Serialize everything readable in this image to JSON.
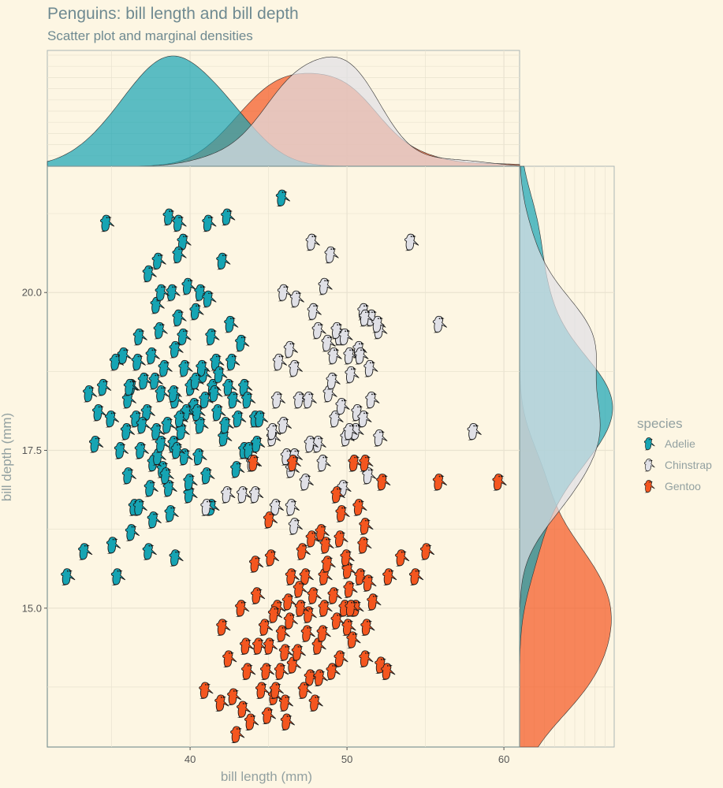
{
  "chart_data": {
    "type": "scatter",
    "title": "Penguins: bill length and bill depth",
    "subtitle": "Scatter plot and marginal densities",
    "xlabel": "bill length (mm)",
    "ylabel": "bill depth (mm)",
    "xlim": [
      30.9,
      61.0
    ],
    "ylim": [
      12.8,
      22.0
    ],
    "x_ticks": [
      40,
      50,
      60
    ],
    "y_ticks": [
      15.0,
      17.5,
      20.0
    ],
    "x_tick_labels": [
      "40",
      "50",
      "60"
    ],
    "y_tick_labels": [
      "15.0",
      "17.5",
      "20.0"
    ],
    "grid": true,
    "legend": {
      "title": "species",
      "position": "right"
    },
    "colors": {
      "Adelie": "#16a4b3",
      "Chinstrap": "#e0e0e6",
      "Gentoo": "#f4561f"
    },
    "marginal_densities": {
      "top": "bill length (mm)",
      "right": "bill depth (mm)"
    },
    "series": [
      {
        "name": "Adelie",
        "points": [
          [
            34.6,
            21.1
          ],
          [
            38.6,
            21.2
          ],
          [
            39.2,
            21.1
          ],
          [
            41.1,
            21.1
          ],
          [
            42.3,
            21.2
          ],
          [
            45.8,
            21.5
          ],
          [
            36.7,
            19.3
          ],
          [
            37.8,
            19.8
          ],
          [
            39.2,
            19.6
          ],
          [
            39.5,
            19.3
          ],
          [
            40.3,
            19.7
          ],
          [
            41.3,
            19.3
          ],
          [
            42.5,
            19.5
          ],
          [
            38.0,
            19.4
          ],
          [
            37.9,
            20.5
          ],
          [
            39.8,
            20.1
          ],
          [
            39.5,
            20.8
          ],
          [
            42.0,
            20.5
          ],
          [
            37.3,
            20.3
          ],
          [
            40.6,
            20.0
          ],
          [
            41.1,
            19.9
          ],
          [
            38.8,
            20.0
          ],
          [
            38.1,
            20.0
          ],
          [
            43.2,
            19.2
          ],
          [
            39.2,
            20.6
          ],
          [
            42.6,
            18.9
          ],
          [
            35.2,
            18.9
          ],
          [
            33.5,
            18.4
          ],
          [
            36.2,
            18.5
          ],
          [
            37.0,
            18.6
          ],
          [
            38.1,
            18.4
          ],
          [
            40.2,
            18.2
          ],
          [
            41.4,
            18.5
          ],
          [
            42.7,
            18.3
          ],
          [
            36.5,
            18.0
          ],
          [
            37.7,
            18.6
          ],
          [
            39.0,
            18.3
          ],
          [
            40.8,
            18.7
          ],
          [
            41.7,
            18.1
          ],
          [
            43.0,
            18.0
          ],
          [
            34.1,
            18.1
          ],
          [
            35.9,
            17.8
          ],
          [
            37.8,
            17.8
          ],
          [
            38.9,
            17.6
          ],
          [
            40.6,
            17.9
          ],
          [
            42.1,
            17.7
          ],
          [
            44.1,
            18.0
          ],
          [
            33.9,
            17.6
          ],
          [
            35.5,
            17.5
          ],
          [
            36.8,
            17.5
          ],
          [
            38.2,
            17.2
          ],
          [
            39.6,
            17.4
          ],
          [
            41.0,
            17.1
          ],
          [
            42.9,
            17.2
          ],
          [
            36.0,
            17.1
          ],
          [
            37.4,
            16.9
          ],
          [
            38.6,
            16.9
          ],
          [
            39.9,
            16.8
          ],
          [
            41.3,
            16.6
          ],
          [
            43.4,
            17.5
          ],
          [
            36.4,
            16.6
          ],
          [
            37.6,
            16.4
          ],
          [
            38.7,
            16.5
          ],
          [
            35.0,
            16.0
          ],
          [
            36.2,
            16.2
          ],
          [
            37.3,
            15.9
          ],
          [
            39.0,
            15.8
          ],
          [
            33.2,
            15.9
          ],
          [
            35.3,
            15.5
          ],
          [
            32.1,
            15.5
          ],
          [
            36.6,
            18.9
          ],
          [
            39.6,
            18.8
          ],
          [
            40.0,
            18.5
          ],
          [
            43.4,
            18.5
          ],
          [
            44.4,
            18.0
          ],
          [
            43.7,
            17.5
          ],
          [
            34.9,
            18.0
          ],
          [
            38.9,
            18.4
          ],
          [
            37.6,
            17.3
          ],
          [
            36.0,
            18.3
          ],
          [
            40.4,
            18.1
          ],
          [
            42.4,
            18.5
          ],
          [
            38.3,
            18.8
          ],
          [
            39.7,
            18.1
          ],
          [
            37.2,
            18.1
          ],
          [
            41.5,
            18.4
          ],
          [
            38.5,
            17.9
          ],
          [
            40.9,
            18.3
          ],
          [
            39.1,
            17.5
          ],
          [
            39.9,
            17.0
          ],
          [
            40.7,
            18.8
          ],
          [
            37.5,
            19.0
          ],
          [
            35.7,
            19.0
          ],
          [
            34.4,
            18.5
          ],
          [
            36.9,
            17.9
          ],
          [
            39.4,
            17.8
          ],
          [
            42.2,
            17.9
          ],
          [
            38.4,
            17.1
          ],
          [
            36.7,
            16.6
          ],
          [
            41.6,
            18.9
          ],
          [
            40.3,
            18.6
          ],
          [
            39.0,
            19.1
          ],
          [
            40.5,
            17.4
          ],
          [
            37.9,
            17.4
          ],
          [
            41.8,
            18.7
          ],
          [
            39.3,
            18.0
          ],
          [
            38.1,
            17.6
          ],
          [
            36.1,
            18.5
          ],
          [
            43.6,
            18.3
          ],
          [
            44.2,
            17.6
          ]
        ]
      },
      {
        "name": "Chinstrap",
        "points": [
          [
            47.7,
            20.8
          ],
          [
            48.9,
            20.6
          ],
          [
            54.0,
            20.8
          ],
          [
            48.5,
            20.1
          ],
          [
            45.9,
            20.0
          ],
          [
            51.0,
            19.7
          ],
          [
            46.7,
            19.9
          ],
          [
            47.8,
            19.7
          ],
          [
            52.0,
            19.4
          ],
          [
            55.8,
            19.5
          ],
          [
            51.5,
            19.6
          ],
          [
            49.5,
            19.3
          ],
          [
            48.7,
            19.2
          ],
          [
            46.3,
            19.1
          ],
          [
            46.6,
            18.8
          ],
          [
            49.1,
            19.0
          ],
          [
            50.1,
            19.0
          ],
          [
            45.5,
            18.3
          ],
          [
            45.9,
            17.9
          ],
          [
            46.9,
            18.3
          ],
          [
            48.8,
            18.4
          ],
          [
            50.6,
            18.1
          ],
          [
            51.5,
            18.3
          ],
          [
            49.2,
            18.0
          ],
          [
            50.5,
            17.8
          ],
          [
            45.2,
            17.7
          ],
          [
            48.1,
            17.6
          ],
          [
            49.9,
            17.7
          ],
          [
            52.0,
            17.7
          ],
          [
            58.0,
            17.8
          ],
          [
            46.6,
            17.4
          ],
          [
            48.4,
            17.3
          ],
          [
            49.7,
            16.9
          ],
          [
            47.3,
            17.0
          ],
          [
            45.4,
            16.6
          ],
          [
            51.3,
            17.1
          ],
          [
            43.3,
            16.8
          ],
          [
            42.3,
            16.8
          ],
          [
            41.0,
            16.6
          ],
          [
            46.4,
            16.6
          ],
          [
            46.6,
            16.3
          ],
          [
            50.1,
            17.8
          ],
          [
            51.4,
            18.8
          ],
          [
            50.7,
            19.1
          ],
          [
            49.3,
            19.4
          ],
          [
            51.0,
            18.0
          ],
          [
            45.6,
            18.9
          ],
          [
            47.5,
            18.3
          ],
          [
            48.1,
            19.4
          ],
          [
            51.9,
            19.5
          ],
          [
            49.8,
            19.3
          ],
          [
            50.2,
            18.7
          ],
          [
            46.1,
            17.4
          ],
          [
            47.6,
            17.6
          ],
          [
            49.0,
            18.6
          ],
          [
            44.1,
            16.8
          ],
          [
            50.8,
            19.0
          ],
          [
            51.1,
            19.6
          ],
          [
            49.6,
            18.2
          ],
          [
            43.9,
            17.3
          ],
          [
            45.2,
            17.8
          ],
          [
            46.4,
            17.2
          ]
        ]
      },
      {
        "name": "Gentoo",
        "points": [
          [
            44.0,
            17.3
          ],
          [
            46.5,
            17.3
          ],
          [
            50.4,
            17.3
          ],
          [
            51.1,
            17.3
          ],
          [
            52.2,
            17.0
          ],
          [
            55.8,
            17.0
          ],
          [
            59.6,
            17.0
          ],
          [
            49.3,
            16.8
          ],
          [
            45.0,
            16.4
          ],
          [
            50.7,
            16.6
          ],
          [
            51.1,
            16.3
          ],
          [
            48.3,
            16.2
          ],
          [
            48.6,
            16.0
          ],
          [
            49.5,
            16.1
          ],
          [
            51.0,
            16.0
          ],
          [
            47.1,
            15.9
          ],
          [
            53.4,
            15.8
          ],
          [
            55.0,
            15.9
          ],
          [
            44.1,
            15.7
          ],
          [
            45.1,
            15.8
          ],
          [
            47.3,
            15.5
          ],
          [
            48.5,
            15.5
          ],
          [
            50.0,
            15.6
          ],
          [
            52.6,
            15.5
          ],
          [
            54.3,
            15.5
          ],
          [
            46.9,
            15.3
          ],
          [
            47.8,
            15.2
          ],
          [
            50.1,
            15.3
          ],
          [
            45.5,
            15.0
          ],
          [
            46.2,
            15.1
          ],
          [
            48.5,
            15.0
          ],
          [
            50.5,
            15.0
          ],
          [
            43.2,
            15.0
          ],
          [
            44.7,
            14.7
          ],
          [
            45.8,
            14.6
          ],
          [
            47.4,
            14.6
          ],
          [
            49.3,
            14.8
          ],
          [
            51.2,
            14.7
          ],
          [
            46.0,
            14.3
          ],
          [
            48.1,
            14.4
          ],
          [
            49.5,
            14.2
          ],
          [
            50.3,
            14.5
          ],
          [
            42.0,
            14.7
          ],
          [
            43.6,
            14.0
          ],
          [
            44.8,
            14.0
          ],
          [
            46.5,
            14.1
          ],
          [
            47.6,
            13.9
          ],
          [
            49.0,
            14.0
          ],
          [
            51.1,
            14.2
          ],
          [
            52.1,
            14.1
          ],
          [
            42.7,
            13.6
          ],
          [
            44.5,
            13.7
          ],
          [
            46.0,
            13.5
          ],
          [
            47.2,
            13.7
          ],
          [
            40.9,
            13.7
          ],
          [
            41.9,
            13.5
          ],
          [
            43.3,
            13.4
          ],
          [
            44.9,
            13.3
          ],
          [
            45.3,
            13.6
          ],
          [
            46.1,
            13.2
          ],
          [
            43.8,
            13.2
          ],
          [
            42.9,
            13.0
          ],
          [
            45.4,
            13.7
          ],
          [
            49.9,
            15.8
          ],
          [
            50.8,
            15.5
          ],
          [
            48.7,
            15.7
          ],
          [
            49.1,
            15.2
          ],
          [
            47.5,
            14.9
          ],
          [
            45.3,
            14.9
          ],
          [
            46.4,
            15.5
          ],
          [
            52.5,
            14.0
          ],
          [
            44.3,
            14.4
          ],
          [
            48.2,
            13.9
          ],
          [
            50.0,
            14.7
          ],
          [
            47.0,
            15.0
          ],
          [
            49.8,
            15.0
          ],
          [
            46.8,
            14.3
          ],
          [
            43.5,
            14.4
          ],
          [
            45.0,
            14.4
          ],
          [
            51.3,
            15.4
          ],
          [
            47.7,
            16.1
          ],
          [
            50.2,
            15.0
          ],
          [
            48.4,
            14.6
          ],
          [
            46.3,
            14.8
          ],
          [
            44.2,
            15.2
          ],
          [
            49.6,
            16.5
          ],
          [
            51.6,
            15.1
          ],
          [
            45.7,
            14.0
          ],
          [
            42.4,
            14.2
          ],
          [
            47.9,
            13.5
          ]
        ]
      }
    ]
  }
}
